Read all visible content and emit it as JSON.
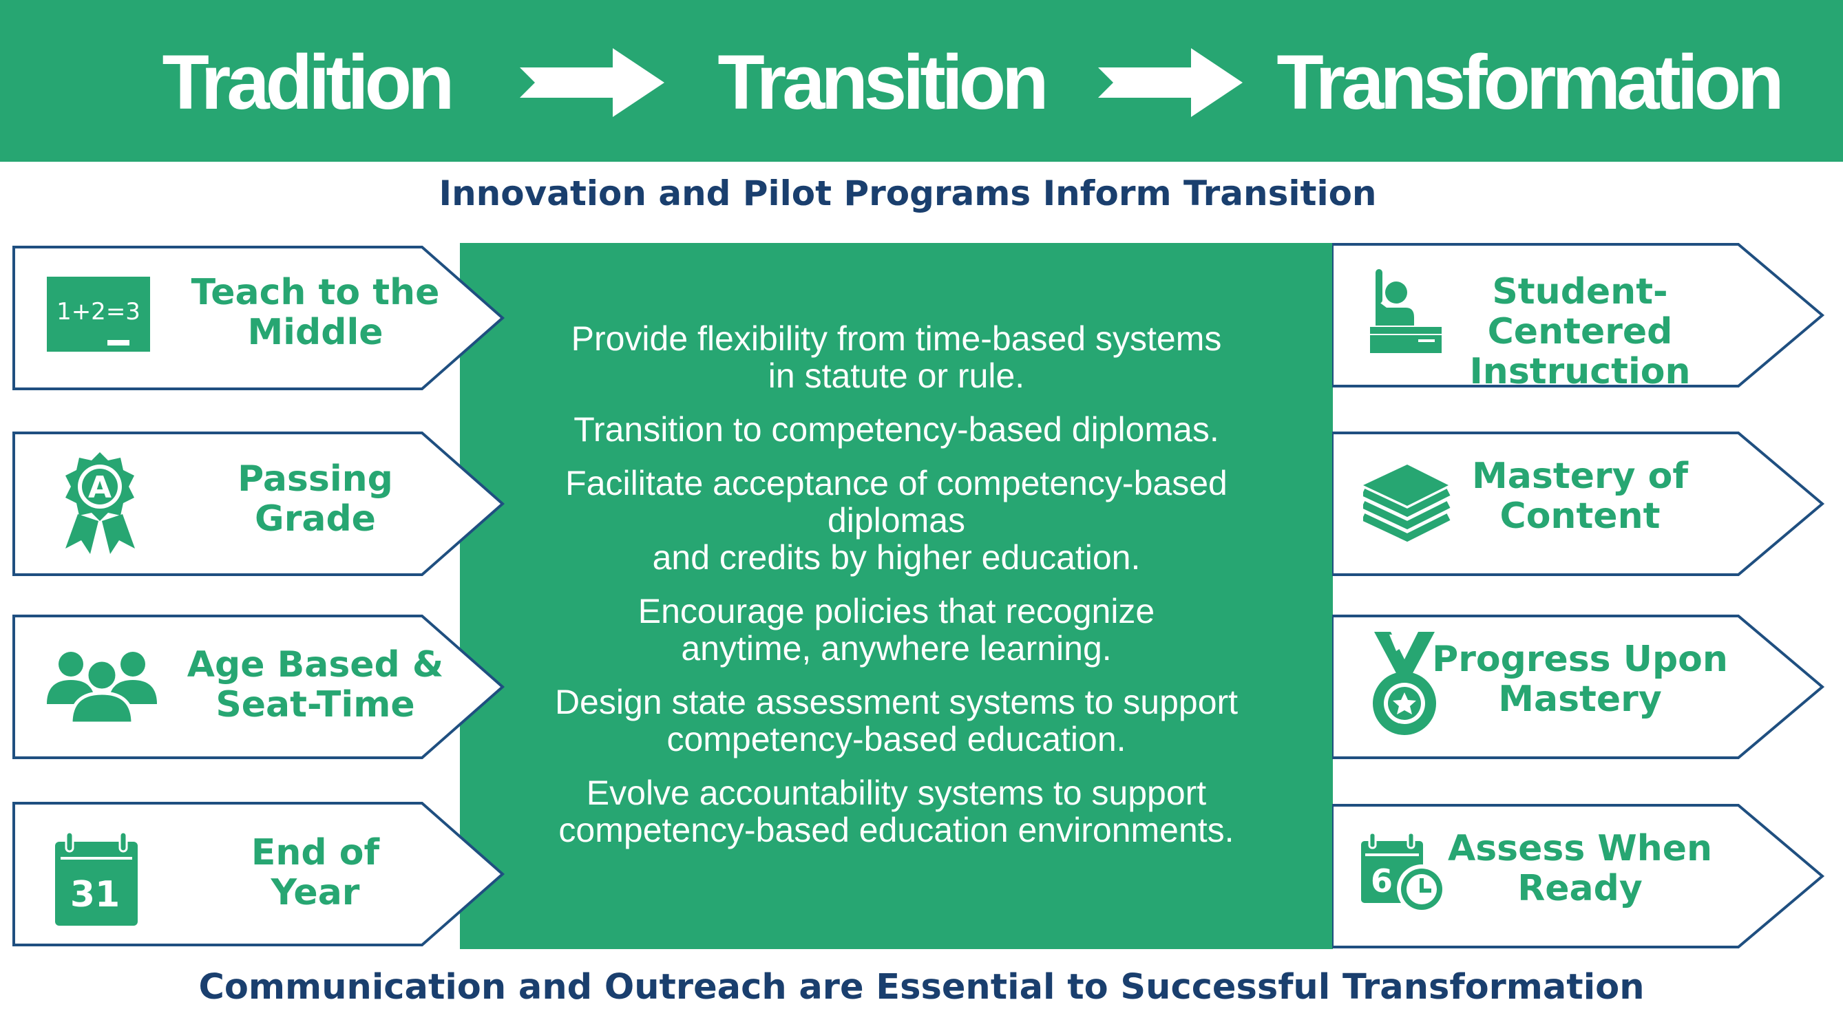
{
  "header": {
    "stages": [
      "Tradition",
      "Transition",
      "Transformation"
    ],
    "background_color": "#27a672",
    "text_color": "#ffffff"
  },
  "top_subtitle": "Innovation and Pilot Programs Inform Transition",
  "bottom_subtitle": "Communication and Outreach are Essential to Successful Transformation",
  "policies": [
    "Provide flexibility from time-based systems\nin statute or rule.",
    "Transition to competency-based diplomas.",
    "Facilitate acceptance of competency-based\ndiplomas\nand credits by higher education.",
    "Encourage policies that recognize\nanytime, anywhere learning.",
    "Design state assessment systems to support\ncompetency-based education.",
    "Evolve accountability systems to support\ncompetency-based education environments."
  ],
  "tradition_items": [
    {
      "label": "Teach to the\nMiddle",
      "icon": "chalkboard-icon",
      "icon_text": "1+2=3"
    },
    {
      "label": "Passing\nGrade",
      "icon": "grade-badge-icon",
      "icon_text": "A"
    },
    {
      "label": "Age Based &\nSeat-Time",
      "icon": "people-group-icon"
    },
    {
      "label": "End of\nYear",
      "icon": "calendar-icon",
      "icon_text": "31"
    }
  ],
  "transformation_items": [
    {
      "label": "Student-Centered\nInstruction",
      "icon": "student-desk-icon"
    },
    {
      "label": "Mastery of\nContent",
      "icon": "book-stack-icon"
    },
    {
      "label": "Progress Upon\nMastery",
      "icon": "medal-icon"
    },
    {
      "label": "Assess When\nReady",
      "icon": "calendar-clock-icon",
      "icon_text": "6"
    }
  ],
  "colors": {
    "green": "#27a672",
    "navy": "#1a3f6e",
    "outline": "#1f4f80"
  }
}
